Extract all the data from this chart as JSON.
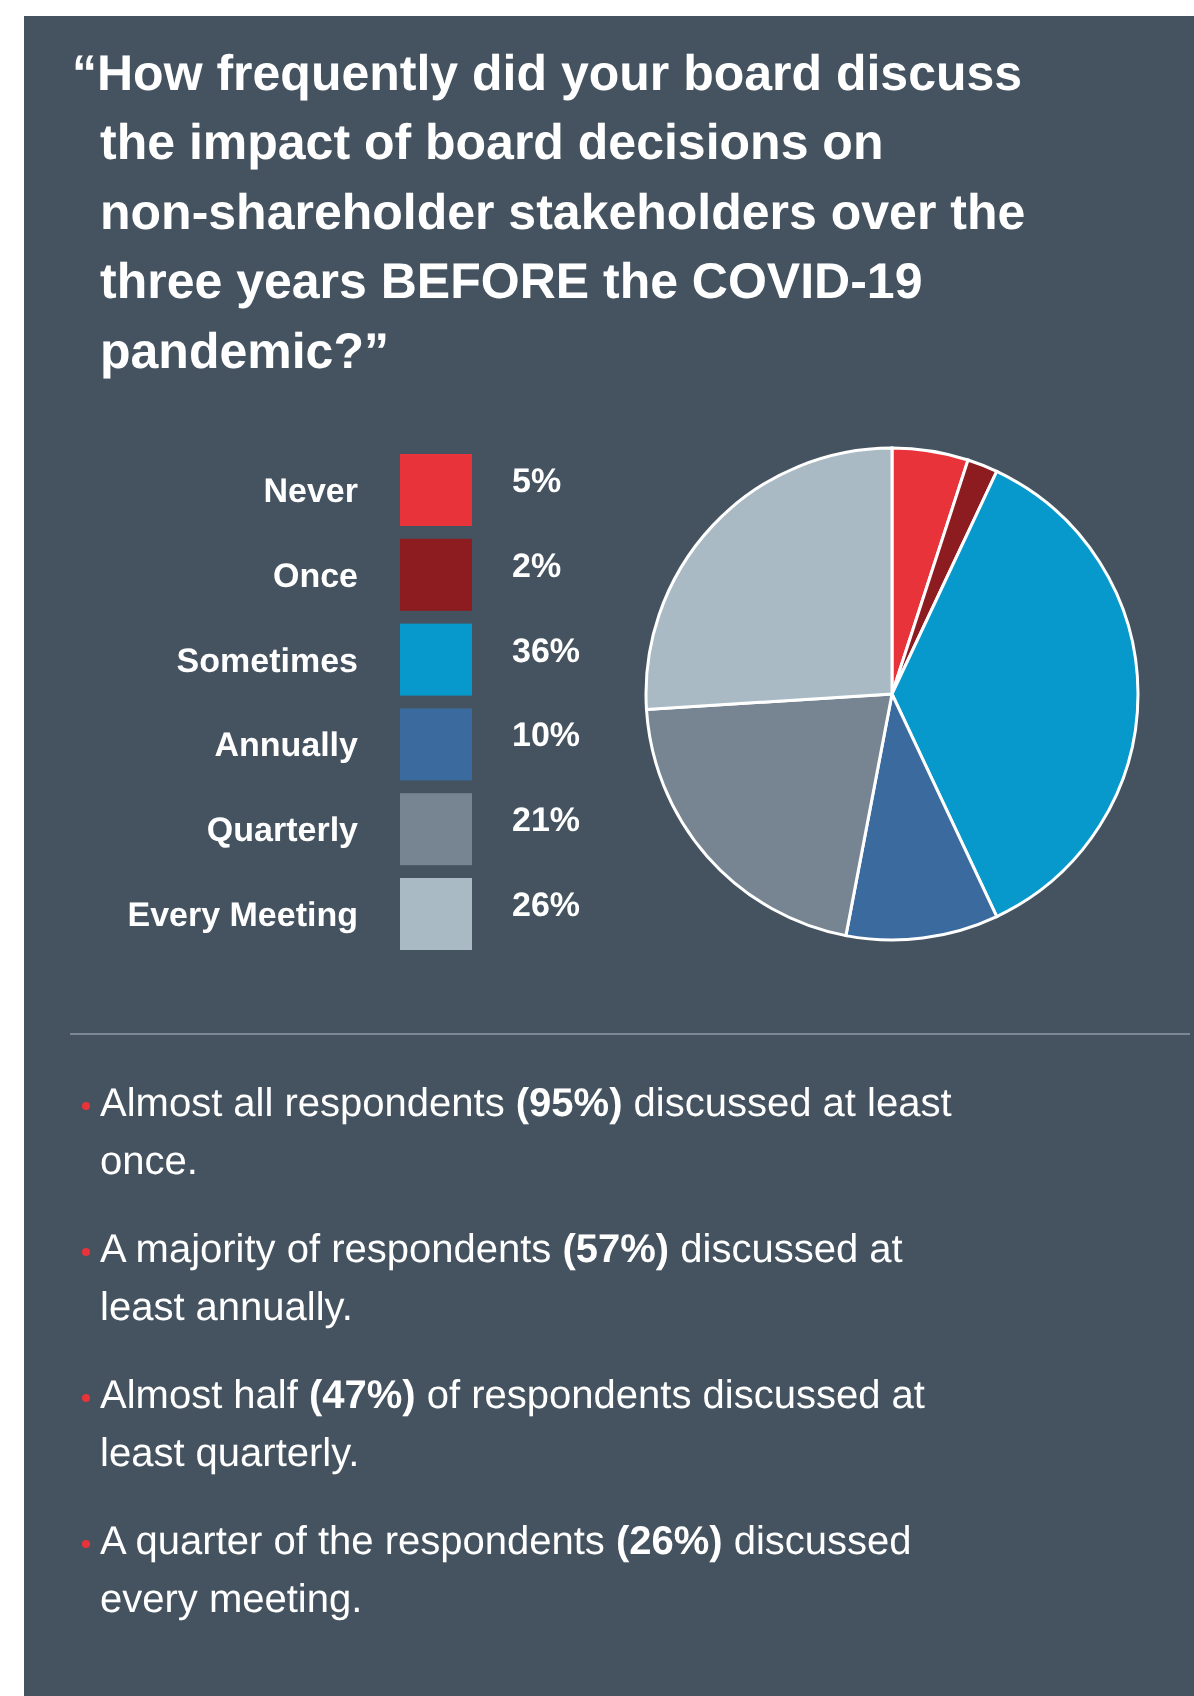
{
  "chart_data": {
    "type": "pie",
    "title": "“How frequently did your board discuss the impact of board decisions on non-shareholder stakeholders over the three years BEFORE the COVID-19 pandemic?”",
    "categories": [
      "Never",
      "Once",
      "Sometimes",
      "Annually",
      "Quarterly",
      "Every Meeting"
    ],
    "values": [
      5,
      2,
      36,
      10,
      21,
      26
    ],
    "colors": [
      "#e8333a",
      "#8d1c21",
      "#0799cc",
      "#3b6b9e",
      "#768591",
      "#a9bac5"
    ],
    "value_labels": [
      "5%",
      "2%",
      "36%",
      "10%",
      "21%",
      "26%"
    ],
    "legend": "left",
    "annotations": [
      "Almost all respondents (95%) discussed at least once.",
      "A majority of respondents (57%) discussed at least annually.",
      "Almost half (47%) of respondents discussed at least quarterly.",
      "A quarter of the respondents (26%) discussed every meeting."
    ]
  }
}
